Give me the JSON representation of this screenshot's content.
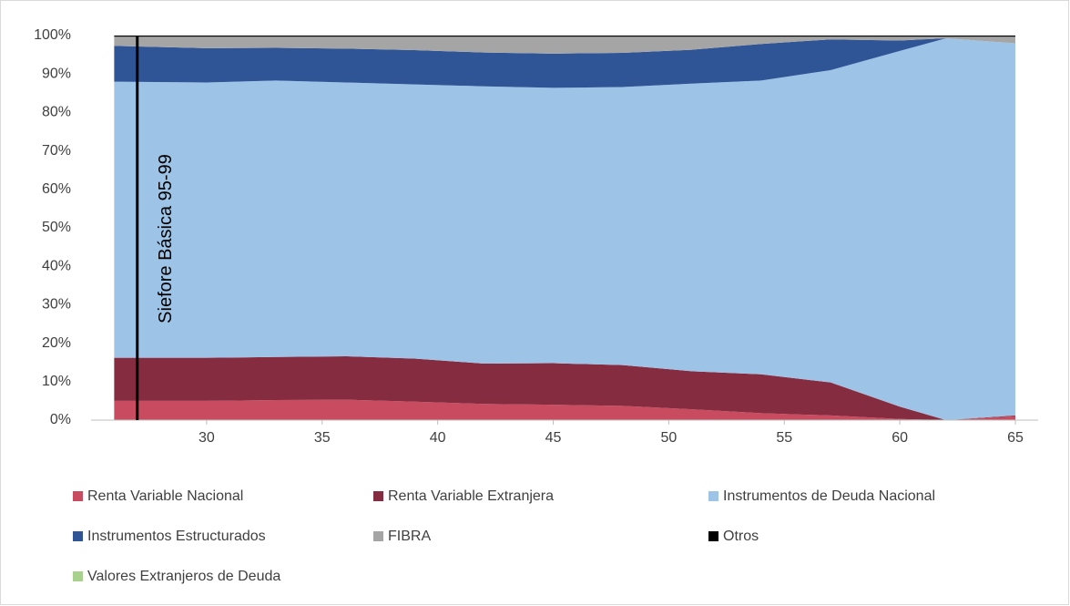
{
  "chart_data": {
    "type": "stacked_area",
    "x": [
      26,
      30,
      33,
      36,
      39,
      42,
      45,
      48,
      51,
      54,
      57,
      60,
      62,
      65
    ],
    "series": [
      {
        "name": "Renta Variable Nacional",
        "color": "#c94b5f",
        "values": [
          5,
          5,
          5.2,
          5.3,
          4.8,
          4.2,
          4,
          3.7,
          2.8,
          1.8,
          1.2,
          0.3,
          0,
          1
        ]
      },
      {
        "name": "Renta Variable Extranjera",
        "color": "#862c40",
        "values": [
          11.2,
          11.2,
          11.2,
          11.3,
          11.2,
          10.5,
          10.8,
          10.6,
          9.9,
          10.1,
          8.6,
          3.2,
          0,
          0.2
        ]
      },
      {
        "name": "Instrumentos de Deuda Nacional",
        "color": "#9dc3e6",
        "values": [
          71.8,
          71.6,
          71.9,
          71.2,
          71.3,
          72.1,
          71.6,
          72.3,
          74.8,
          76.4,
          81.2,
          92.5,
          99.3,
          96.8
        ]
      },
      {
        "name": "Instrumentos Estructurados",
        "color": "#2f5597",
        "values": [
          9.3,
          8.9,
          8.5,
          8.8,
          8.9,
          8.8,
          8.9,
          8.9,
          8.8,
          9.5,
          8,
          2.7,
          0,
          0
        ]
      },
      {
        "name": "FIBRA",
        "color": "#a5a5a5",
        "values": [
          2.4,
          3,
          2.9,
          3.1,
          3.5,
          4.1,
          4.4,
          4.2,
          3.4,
          1.9,
          0.7,
          1,
          0.4,
          1.7
        ]
      },
      {
        "name": "Otros",
        "color": "#000000",
        "values": [
          0.3,
          0.3,
          0.3,
          0.3,
          0.3,
          0.3,
          0.3,
          0.3,
          0.3,
          0.3,
          0.3,
          0.3,
          0.3,
          0.3
        ]
      },
      {
        "name": "Valores Extranjeros de Deuda",
        "color": "#a9d18e",
        "values": [
          0,
          0,
          0,
          0,
          0,
          0,
          0,
          0,
          0,
          0,
          0,
          0,
          0,
          0
        ]
      }
    ],
    "xlim": [
      25,
      65
    ],
    "xticks": [
      30,
      35,
      40,
      45,
      50,
      55,
      60,
      65
    ],
    "ylim": [
      0,
      100
    ],
    "yticks": [
      {
        "value": 0,
        "label": "0%"
      },
      {
        "value": 10,
        "label": "10%"
      },
      {
        "value": 20,
        "label": "20%"
      },
      {
        "value": 30,
        "label": "30%"
      },
      {
        "value": 40,
        "label": "40%"
      },
      {
        "value": 50,
        "label": "50%"
      },
      {
        "value": 60,
        "label": "60%"
      },
      {
        "value": 70,
        "label": "70%"
      },
      {
        "value": 80,
        "label": "80%"
      },
      {
        "value": 90,
        "label": "90%"
      },
      {
        "value": 100,
        "label": "100%"
      }
    ],
    "annotations": [
      {
        "text": "Siefore Básica 95-99",
        "x": 27
      }
    ],
    "legend": "bottom"
  }
}
